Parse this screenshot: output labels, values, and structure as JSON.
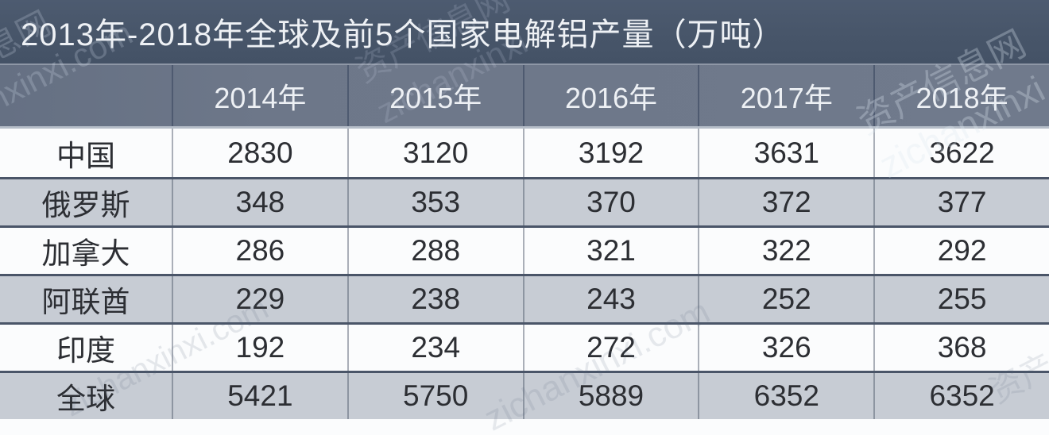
{
  "title": "2013年-2018年全球及前5个国家电解铝产量（万吨）",
  "table": {
    "corner_label": "",
    "year_headers": [
      "2014年",
      "2015年",
      "2016年",
      "2017年",
      "2018年"
    ],
    "rows": [
      {
        "label": "中国",
        "values": [
          "2830",
          "3120",
          "3192",
          "3631",
          "3622"
        ]
      },
      {
        "label": "俄罗斯",
        "values": [
          "348",
          "353",
          "370",
          "372",
          "377"
        ]
      },
      {
        "label": "加拿大",
        "values": [
          "286",
          "288",
          "321",
          "322",
          "292"
        ]
      },
      {
        "label": "阿联酋",
        "values": [
          "229",
          "238",
          "243",
          "252",
          "255"
        ]
      },
      {
        "label": "印度",
        "values": [
          "192",
          "234",
          "272",
          "326",
          "368"
        ]
      },
      {
        "label": "全球",
        "values": [
          "5421",
          "5750",
          "5889",
          "6352",
          "6352"
        ]
      }
    ]
  },
  "watermark": {
    "site_cn": "资产信息网",
    "site_en": "zichanxinxi",
    "site_domain": "zichanxinxi.com"
  },
  "colors": {
    "title_band": "#475569",
    "header_row": "#6d7789",
    "row_white": "#fbfcfd",
    "row_gray": "#c7ccd4",
    "border_dark": "#4a5568",
    "border_light": "#b5bdc8",
    "text_dark": "#2c2e33",
    "text_light": "#eef1f5"
  },
  "chart_data": {
    "type": "table",
    "title": "2013年-2018年全球及前5个国家电解铝产量（万吨）",
    "categories": [
      "2014年",
      "2015年",
      "2016年",
      "2017年",
      "2018年"
    ],
    "series": [
      {
        "name": "中国",
        "values": [
          2830,
          3120,
          3192,
          3631,
          3622
        ]
      },
      {
        "name": "俄罗斯",
        "values": [
          348,
          353,
          370,
          372,
          377
        ]
      },
      {
        "name": "加拿大",
        "values": [
          286,
          288,
          321,
          322,
          292
        ]
      },
      {
        "name": "阿联酋",
        "values": [
          229,
          238,
          243,
          252,
          255
        ]
      },
      {
        "name": "印度",
        "values": [
          192,
          234,
          272,
          326,
          368
        ]
      },
      {
        "name": "全球",
        "values": [
          5421,
          5750,
          5889,
          6352,
          6352
        ]
      }
    ],
    "unit": "万吨"
  }
}
